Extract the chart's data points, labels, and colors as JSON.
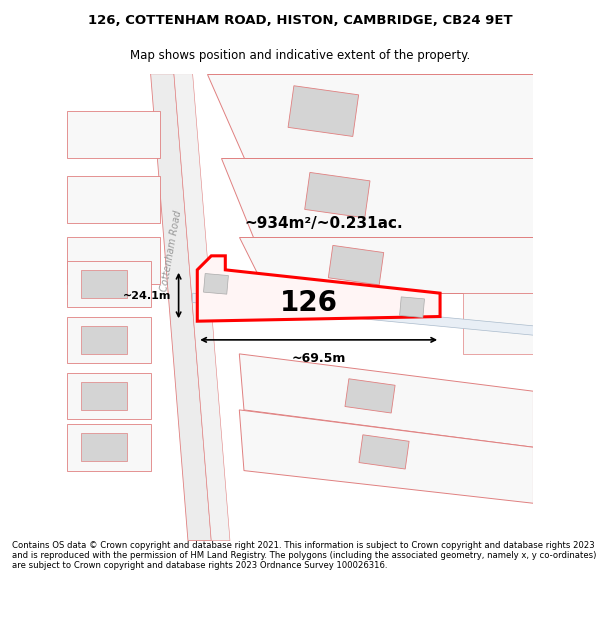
{
  "title_line1": "126, COTTENHAM ROAD, HISTON, CAMBRIDGE, CB24 9ET",
  "title_line2": "Map shows position and indicative extent of the property.",
  "footer_text": "Contains OS data © Crown copyright and database right 2021. This information is subject to Crown copyright and database rights 2023 and is reproduced with the permission of HM Land Registry. The polygons (including the associated geometry, namely x, y co-ordinates) are subject to Crown copyright and database rights 2023 Ordnance Survey 100026316.",
  "area_label": "~934m²/~0.231ac.",
  "number_label": "126",
  "width_label": "~69.5m",
  "height_label": "~24.1m",
  "road_label": "Cottenham Road",
  "bg_color": "#ffffff",
  "highlight_color": "#ff0000",
  "building_fill": "#d4d4d4",
  "line_color": "#e08080",
  "light_line": "#f0a0a0"
}
